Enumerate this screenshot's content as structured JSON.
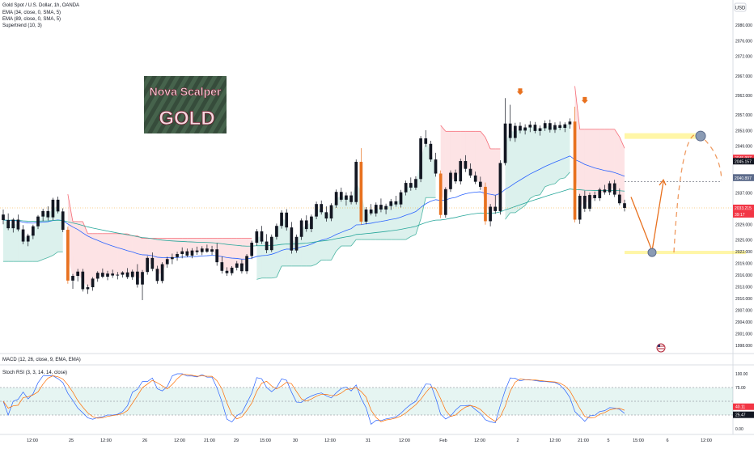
{
  "chart_data": {
    "type": "candlestick",
    "symbol_line": "Gold Spot / U.S. Dollar, 1h, OANDA",
    "currency_badge": "USD",
    "indicator_labels": [
      "EMA (34, close, 0, SMA, 5)",
      "EMA (89, close, 0, SMA, 5)",
      "Supertrend (10, 3)"
    ],
    "logo": {
      "line1": "Nova Scalper",
      "line2": "GOLD"
    },
    "price_axis": {
      "ticks": [
        "2080.000",
        "2076.000",
        "2072.000",
        "2067.000",
        "2062.000",
        "2057.000",
        "2053.000",
        "2049.000",
        "2041.000",
        "2037.000",
        "2029.000",
        "2025.000",
        "2022.000",
        "2019.000",
        "2016.000",
        "2013.000",
        "2010.000",
        "2007.000",
        "2004.000",
        "2001.000",
        "1998.000"
      ],
      "badges": [
        {
          "text": "2045.997",
          "color": "#f23645"
        },
        {
          "text": "2045.157",
          "color": "#131722"
        },
        {
          "text": "2041.009",
          "color": "#5b6a8a"
        },
        {
          "text": "2040.897",
          "color": "#5b6a8a"
        },
        {
          "text": "2033.215",
          "color": "#f23645"
        },
        {
          "text": "39:17",
          "color": "#f23645"
        }
      ]
    },
    "time_axis": [
      "12:00",
      "25",
      "12:00",
      "26",
      "12:00",
      "21:00",
      "29",
      "15:00",
      "30",
      "12:00",
      "31",
      "12:00",
      "Feb",
      "12:00",
      "2",
      "12:00",
      "21:00",
      "5",
      "15:00",
      "6",
      "12:00"
    ],
    "candles": [
      [
        2031.5,
        2032.8,
        2029.0,
        2030.1
      ],
      [
        2030.1,
        2031.8,
        2027.5,
        2028.0
      ],
      [
        2028.0,
        2030.6,
        2026.9,
        2030.2
      ],
      [
        2030.2,
        2031.5,
        2027.2,
        2027.7
      ],
      [
        2027.7,
        2028.8,
        2023.9,
        2024.6
      ],
      [
        2024.6,
        2026.6,
        2023.4,
        2026.1
      ],
      [
        2026.1,
        2028.9,
        2025.2,
        2028.5
      ],
      [
        2028.5,
        2031.4,
        2027.8,
        2031.0
      ],
      [
        2031.0,
        2033.0,
        2029.8,
        2032.4
      ],
      [
        2032.4,
        2033.6,
        2030.0,
        2030.8
      ],
      [
        2030.8,
        2035.8,
        2030.1,
        2035.3
      ],
      [
        2035.3,
        2036.1,
        2031.8,
        2032.3
      ],
      [
        2032.3,
        2033.1,
        2027.0,
        2027.6
      ],
      [
        2027.6,
        2028.4,
        2013.8,
        2014.6
      ],
      [
        2014.6,
        2016.3,
        2012.5,
        2015.8
      ],
      [
        2015.8,
        2017.6,
        2014.4,
        2016.9
      ],
      [
        2016.9,
        2017.6,
        2011.8,
        2012.4
      ],
      [
        2012.4,
        2013.6,
        2011.2,
        2012.9
      ],
      [
        2012.9,
        2015.5,
        2012.0,
        2015.1
      ],
      [
        2015.1,
        2017.0,
        2014.3,
        2016.6
      ],
      [
        2016.6,
        2017.7,
        2015.2,
        2015.6
      ],
      [
        2015.6,
        2017.1,
        2014.7,
        2016.4
      ],
      [
        2016.4,
        2017.4,
        2015.3,
        2015.9
      ],
      [
        2015.9,
        2016.8,
        2014.9,
        2016.1
      ],
      [
        2016.1,
        2017.0,
        2015.4,
        2016.7
      ],
      [
        2016.7,
        2017.8,
        2015.0,
        2015.5
      ],
      [
        2015.5,
        2017.4,
        2014.8,
        2016.9
      ],
      [
        2016.9,
        2018.8,
        2012.8,
        2013.6
      ],
      [
        2013.6,
        2017.3,
        2009.6,
        2016.8
      ],
      [
        2016.8,
        2020.9,
        2016.1,
        2020.4
      ],
      [
        2020.4,
        2021.8,
        2017.0,
        2017.6
      ],
      [
        2017.6,
        2018.4,
        2013.8,
        2014.5
      ],
      [
        2014.5,
        2019.3,
        2013.9,
        2018.8
      ],
      [
        2018.8,
        2020.7,
        2017.9,
        2020.1
      ],
      [
        2020.1,
        2021.5,
        2018.8,
        2020.6
      ],
      [
        2020.6,
        2022.0,
        2019.7,
        2021.4
      ],
      [
        2021.4,
        2023.1,
        2020.3,
        2022.1
      ],
      [
        2022.1,
        2022.8,
        2020.6,
        2021.0
      ],
      [
        2021.0,
        2022.9,
        2020.3,
        2022.3
      ],
      [
        2022.3,
        2023.3,
        2021.2,
        2021.9
      ],
      [
        2021.9,
        2023.4,
        2021.1,
        2022.8
      ],
      [
        2022.8,
        2023.8,
        2021.7,
        2022.0
      ],
      [
        2022.0,
        2023.5,
        2021.2,
        2022.6
      ],
      [
        2022.6,
        2024.2,
        2018.4,
        2019.3
      ],
      [
        2019.3,
        2020.8,
        2016.4,
        2017.1
      ],
      [
        2017.1,
        2018.0,
        2015.8,
        2016.5
      ],
      [
        2016.5,
        2018.3,
        2015.9,
        2017.9
      ],
      [
        2017.9,
        2019.6,
        2017.2,
        2019.0
      ],
      [
        2019.0,
        2020.0,
        2016.4,
        2017.0
      ],
      [
        2017.0,
        2021.4,
        2016.3,
        2020.9
      ],
      [
        2020.9,
        2024.8,
        2020.1,
        2024.3
      ],
      [
        2024.3,
        2027.8,
        2023.5,
        2027.2
      ],
      [
        2027.2,
        2028.6,
        2024.0,
        2024.6
      ],
      [
        2024.6,
        2026.5,
        2021.6,
        2022.4
      ],
      [
        2022.4,
        2026.4,
        2021.9,
        2025.8
      ],
      [
        2025.8,
        2029.2,
        2025.1,
        2028.6
      ],
      [
        2028.6,
        2032.6,
        2027.9,
        2032.0
      ],
      [
        2032.0,
        2032.9,
        2027.4,
        2028.2
      ],
      [
        2028.2,
        2029.6,
        2021.5,
        2022.3
      ],
      [
        2022.3,
        2026.4,
        2021.7,
        2025.8
      ],
      [
        2025.8,
        2030.5,
        2025.0,
        2030.0
      ],
      [
        2030.0,
        2031.3,
        2027.1,
        2027.8
      ],
      [
        2027.8,
        2031.5,
        2027.0,
        2031.0
      ],
      [
        2031.0,
        2034.8,
        2030.3,
        2034.2
      ],
      [
        2034.2,
        2035.1,
        2031.5,
        2032.1
      ],
      [
        2032.1,
        2033.6,
        2029.7,
        2030.5
      ],
      [
        2030.5,
        2034.4,
        2029.8,
        2033.9
      ],
      [
        2033.9,
        2037.9,
        2033.2,
        2037.3
      ],
      [
        2037.3,
        2038.4,
        2034.8,
        2035.3
      ],
      [
        2035.3,
        2037.2,
        2033.8,
        2036.4
      ],
      [
        2036.4,
        2037.4,
        2034.1,
        2034.7
      ],
      [
        2034.7,
        2045.6,
        2034.1,
        2045.0
      ],
      [
        2045.0,
        2048.5,
        2028.9,
        2029.7
      ],
      [
        2029.7,
        2033.4,
        2029.0,
        2032.8
      ],
      [
        2032.8,
        2034.2,
        2031.3,
        2031.8
      ],
      [
        2031.8,
        2034.6,
        2031.0,
        2034.0
      ],
      [
        2034.0,
        2035.6,
        2032.1,
        2032.8
      ],
      [
        2032.8,
        2034.3,
        2031.6,
        2033.7
      ],
      [
        2033.7,
        2035.5,
        2032.7,
        2034.9
      ],
      [
        2034.9,
        2036.3,
        2033.5,
        2034.1
      ],
      [
        2034.1,
        2037.8,
        2033.3,
        2037.2
      ],
      [
        2037.2,
        2040.2,
        2036.4,
        2039.6
      ],
      [
        2039.6,
        2041.0,
        2037.6,
        2038.4
      ],
      [
        2038.4,
        2041.3,
        2037.8,
        2040.6
      ],
      [
        2040.6,
        2051.6,
        2039.8,
        2051.0
      ],
      [
        2051.0,
        2053.1,
        2048.8,
        2049.6
      ],
      [
        2049.6,
        2050.4,
        2045.0,
        2045.6
      ],
      [
        2045.6,
        2047.3,
        2041.2,
        2042.0
      ],
      [
        2042.0,
        2042.8,
        2030.6,
        2031.4
      ],
      [
        2031.4,
        2038.5,
        2030.7,
        2038.0
      ],
      [
        2038.0,
        2042.8,
        2037.3,
        2042.2
      ],
      [
        2042.2,
        2043.0,
        2039.4,
        2040.0
      ],
      [
        2040.0,
        2045.8,
        2039.2,
        2045.2
      ],
      [
        2045.2,
        2046.7,
        2042.4,
        2043.2
      ],
      [
        2043.2,
        2044.6,
        2040.9,
        2041.5
      ],
      [
        2041.5,
        2042.5,
        2039.3,
        2039.9
      ],
      [
        2039.9,
        2041.2,
        2037.8,
        2038.6
      ],
      [
        2038.6,
        2039.7,
        2028.9,
        2029.8
      ],
      [
        2029.8,
        2034.2,
        2028.5,
        2033.5
      ],
      [
        2033.5,
        2036.4,
        2031.7,
        2032.4
      ],
      [
        2032.4,
        2045.4,
        2031.5,
        2044.7
      ],
      [
        2044.7,
        2061.3,
        2044.1,
        2054.8
      ],
      [
        2054.8,
        2059.6,
        2050.3,
        2051.1
      ],
      [
        2051.1,
        2055.0,
        2050.1,
        2054.2
      ],
      [
        2054.2,
        2055.1,
        2052.3,
        2053.0
      ],
      [
        2053.0,
        2054.6,
        2052.0,
        2053.8
      ],
      [
        2053.8,
        2055.4,
        2052.6,
        2054.5
      ],
      [
        2054.5,
        2055.2,
        2052.3,
        2052.9
      ],
      [
        2052.9,
        2054.3,
        2051.7,
        2053.6
      ],
      [
        2053.6,
        2055.6,
        2052.9,
        2054.9
      ],
      [
        2054.9,
        2055.8,
        2052.5,
        2053.2
      ],
      [
        2053.2,
        2055.1,
        2052.4,
        2054.4
      ],
      [
        2054.4,
        2055.3,
        2053.1,
        2053.7
      ],
      [
        2053.7,
        2055.1,
        2052.6,
        2054.6
      ],
      [
        2054.6,
        2056.1,
        2053.5,
        2055.3
      ],
      [
        2055.3,
        2059.1,
        2029.5,
        2030.2
      ],
      [
        2030.2,
        2036.8,
        2029.1,
        2036.3
      ],
      [
        2036.3,
        2037.6,
        2032.2,
        2033.0
      ],
      [
        2033.0,
        2037.1,
        2032.3,
        2036.5
      ],
      [
        2036.5,
        2037.4,
        2035.0,
        2035.7
      ],
      [
        2035.7,
        2038.4,
        2035.0,
        2037.9
      ],
      [
        2037.9,
        2039.1,
        2036.6,
        2037.2
      ],
      [
        2037.2,
        2040.1,
        2036.5,
        2039.5
      ],
      [
        2039.5,
        2040.4,
        2036.0,
        2036.6
      ],
      [
        2036.6,
        2038.2,
        2033.9,
        2034.4
      ],
      [
        2034.4,
        2035.3,
        2032.3,
        2033.2
      ]
    ],
    "series": [
      {
        "name": "EMA 34",
        "color": "#2962ff"
      },
      {
        "name": "EMA 89",
        "color": "#089981"
      },
      {
        "name": "Supertrend",
        "color": "#e53935"
      }
    ],
    "projection": {
      "support_level": 2021.8,
      "target_level": 2051.6,
      "dashed_level": 2039.9
    },
    "macd_label": "MACD (12, 26, close, 9, EMA, EMA)",
    "stoch_label": "Stoch RSI (3, 3, 14, 14, close)",
    "stoch_axis": {
      "ticks": [
        "100.00",
        "75.00",
        "25.00",
        "0.00"
      ],
      "badges": [
        {
          "text": "40.11",
          "color": "#f23645"
        },
        {
          "text": "25.47",
          "color": "#131722"
        }
      ]
    }
  }
}
